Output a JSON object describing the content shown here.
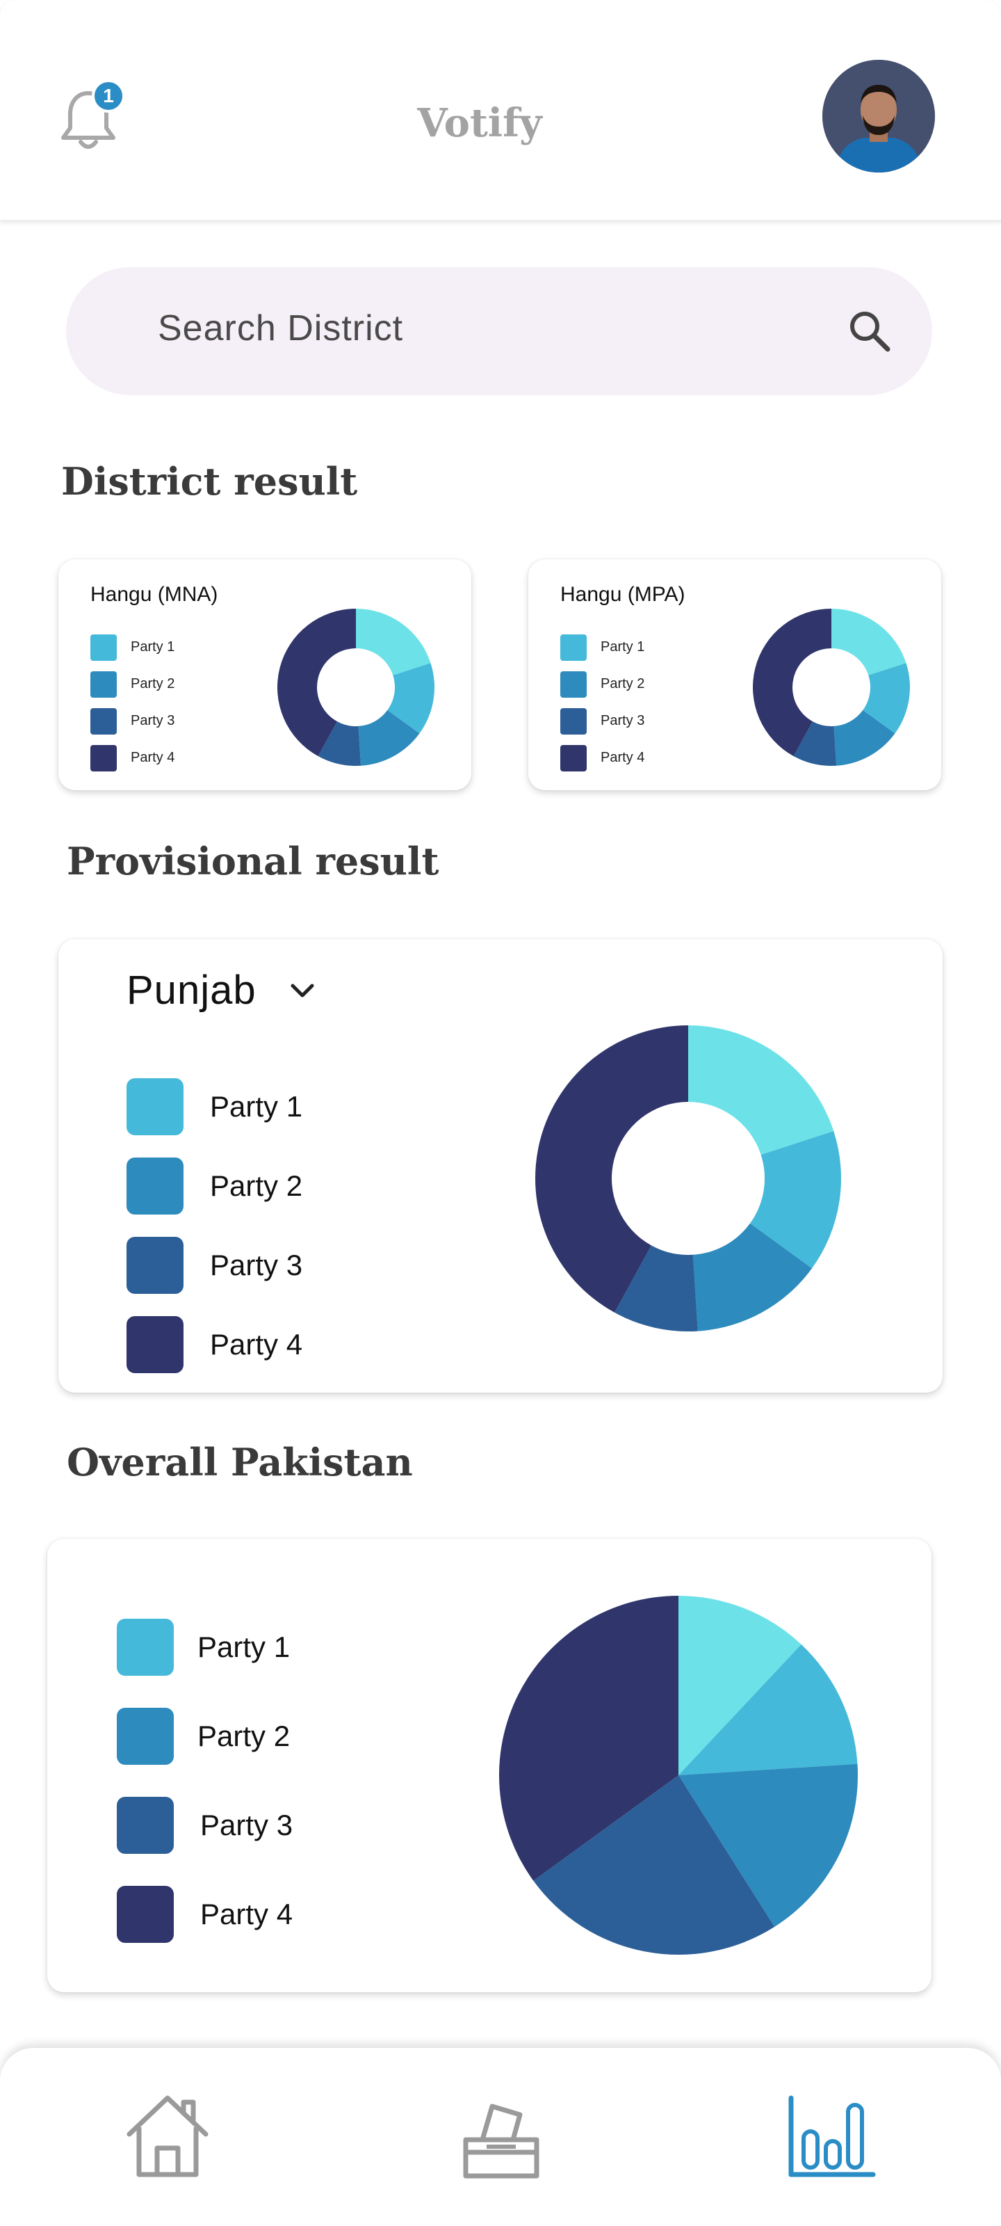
{
  "app": {
    "title": "Votify",
    "notification_count": "1"
  },
  "icons": {
    "bell": "bell-icon",
    "search": "search-icon",
    "chevron": "chevron-down-icon",
    "nav_home": "home-icon",
    "nav_vote": "ballot-box-icon",
    "nav_results": "bar-chart-icon"
  },
  "colors": {
    "party1": "#45b9d9",
    "party2": "#2d8bbd",
    "party3": "#2c5f98",
    "party4": "#30356b",
    "accent_light": "#6ce2e8",
    "nav_active": "#2b8dc6",
    "nav_inactive": "#9a9a9a"
  },
  "search": {
    "placeholder": "Search District"
  },
  "district": {
    "heading": "District result",
    "cards": [
      {
        "title": "Hangu (MNA)",
        "legend": [
          "Party 1",
          "Party 2",
          "Party 3",
          "Party 4"
        ]
      },
      {
        "title": "Hangu (MPA)",
        "legend": [
          "Party 1",
          "Party 2",
          "Party 3",
          "Party 4"
        ]
      }
    ]
  },
  "provisional": {
    "heading": "Provisional result",
    "region": "Punjab",
    "legend": [
      "Party 1",
      "Party 2",
      "Party 3",
      "Party 4"
    ]
  },
  "overall": {
    "heading": "Overall Pakistan",
    "legend": [
      "Party 1",
      "Party 2",
      "Party 3",
      "Party 4"
    ]
  },
  "nav": {
    "active": "results"
  },
  "chart_data": [
    {
      "type": "pie",
      "title": "Hangu (MNA)",
      "donut": true,
      "slices": [
        {
          "label": "",
          "value": 20,
          "color": "#6ce2e8"
        },
        {
          "label": "Party 1",
          "value": 15,
          "color": "#45b9d9"
        },
        {
          "label": "Party 2",
          "value": 14,
          "color": "#2d8bbd"
        },
        {
          "label": "Party 3",
          "value": 9,
          "color": "#2c5f98"
        },
        {
          "label": "Party 4",
          "value": 42,
          "color": "#30356b"
        }
      ]
    },
    {
      "type": "pie",
      "title": "Hangu (MPA)",
      "donut": true,
      "slices": [
        {
          "label": "",
          "value": 20,
          "color": "#6ce2e8"
        },
        {
          "label": "Party 1",
          "value": 15,
          "color": "#45b9d9"
        },
        {
          "label": "Party 2",
          "value": 14,
          "color": "#2d8bbd"
        },
        {
          "label": "Party 3",
          "value": 9,
          "color": "#2c5f98"
        },
        {
          "label": "Party 4",
          "value": 42,
          "color": "#30356b"
        }
      ]
    },
    {
      "type": "pie",
      "title": "Punjab",
      "donut": true,
      "slices": [
        {
          "label": "",
          "value": 20,
          "color": "#6ce2e8"
        },
        {
          "label": "Party 1",
          "value": 15,
          "color": "#45b9d9"
        },
        {
          "label": "Party 2",
          "value": 14,
          "color": "#2d8bbd"
        },
        {
          "label": "Party 3",
          "value": 9,
          "color": "#2c5f98"
        },
        {
          "label": "Party 4",
          "value": 42,
          "color": "#30356b"
        }
      ]
    },
    {
      "type": "pie",
      "title": "Overall Pakistan",
      "donut": false,
      "slices": [
        {
          "label": "",
          "value": 12,
          "color": "#6ce2e8"
        },
        {
          "label": "Party 1",
          "value": 12,
          "color": "#45b9d9"
        },
        {
          "label": "Party 2",
          "value": 17,
          "color": "#2d8bbd"
        },
        {
          "label": "Party 3",
          "value": 24,
          "color": "#2c5f98"
        },
        {
          "label": "Party 4",
          "value": 35,
          "color": "#30356b"
        }
      ]
    }
  ]
}
